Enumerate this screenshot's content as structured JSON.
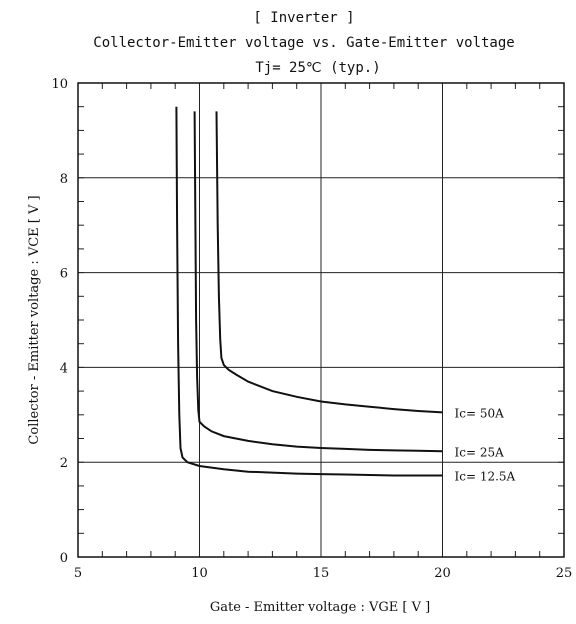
{
  "chart_data": {
    "type": "line",
    "title_lines": [
      "[ Inverter ]",
      "Collector-Emitter voltage  vs. Gate-Emitter voltage",
      "Tj= 25℃     (typ.)"
    ],
    "xlabel": "Gate - Emitter voltage  :  VGE  [ V ]",
    "ylabel": "Collector - Emitter voltage  :  VCE  [ V ]",
    "xlim": [
      5,
      25
    ],
    "ylim": [
      0,
      10
    ],
    "xticks": [
      5,
      10,
      15,
      20,
      25
    ],
    "yticks": [
      0,
      2,
      4,
      6,
      8,
      10
    ],
    "grid": true,
    "series": [
      {
        "name": "Ic= 50A",
        "x": [
          10.7,
          10.75,
          10.8,
          10.85,
          10.9,
          11.0,
          11.2,
          11.5,
          12,
          13,
          14,
          15,
          16,
          17,
          18,
          19,
          20
        ],
        "y": [
          9.4,
          7.0,
          5.5,
          4.6,
          4.2,
          4.05,
          3.95,
          3.85,
          3.7,
          3.5,
          3.38,
          3.28,
          3.22,
          3.17,
          3.12,
          3.08,
          3.05
        ]
      },
      {
        "name": "Ic= 25A",
        "x": [
          9.8,
          9.83,
          9.86,
          9.9,
          9.95,
          10.0,
          10.2,
          10.5,
          11,
          12,
          13,
          14,
          15,
          16,
          17,
          18,
          19,
          20
        ],
        "y": [
          9.4,
          7.0,
          5.0,
          3.8,
          3.1,
          2.85,
          2.75,
          2.65,
          2.55,
          2.45,
          2.38,
          2.33,
          2.3,
          2.28,
          2.26,
          2.25,
          2.24,
          2.23
        ]
      },
      {
        "name": "Ic= 12.5A",
        "x": [
          9.05,
          9.08,
          9.12,
          9.17,
          9.22,
          9.3,
          9.5,
          10,
          11,
          12,
          13,
          14,
          15,
          16,
          17,
          18,
          19,
          20
        ],
        "y": [
          9.5,
          7.0,
          4.5,
          3.0,
          2.3,
          2.1,
          2.0,
          1.92,
          1.85,
          1.8,
          1.78,
          1.76,
          1.75,
          1.74,
          1.73,
          1.72,
          1.72,
          1.72
        ]
      }
    ]
  }
}
